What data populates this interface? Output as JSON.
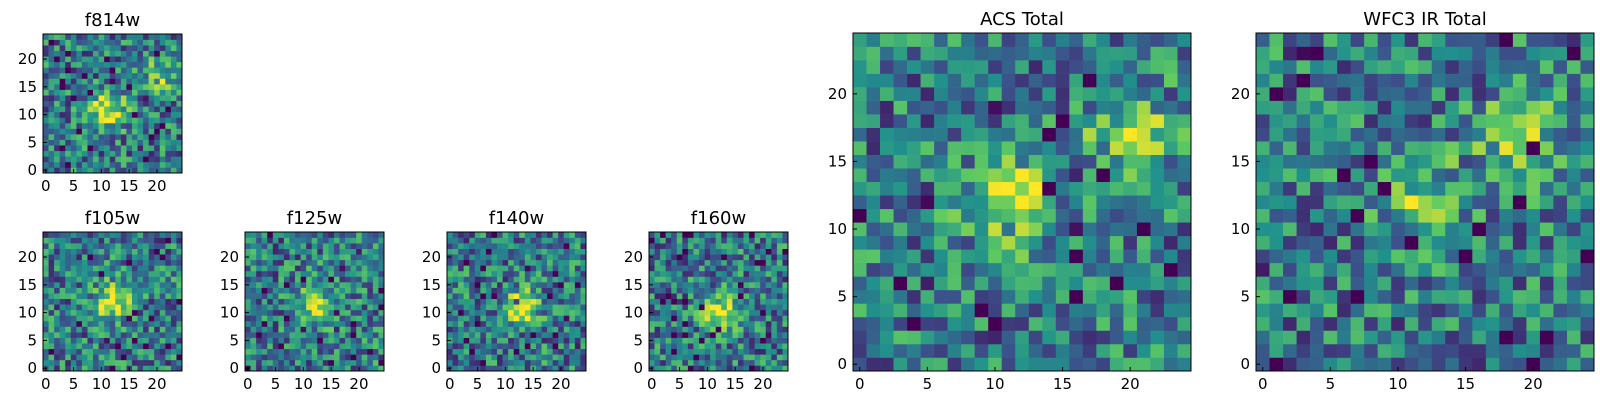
{
  "chart_data": [
    {
      "id": "f814w",
      "type": "heatmap",
      "title": "f814w",
      "grid_size": 25,
      "xlim": [
        0,
        24
      ],
      "ylim": [
        0,
        24
      ],
      "xticks": [
        "0",
        "5",
        "10",
        "15",
        "20"
      ],
      "yticks": [
        "0",
        "5",
        "10",
        "15",
        "20"
      ],
      "colormap": "viridis",
      "features": [
        {
          "x": 11,
          "y": 11,
          "strength": 1.0
        },
        {
          "x": 21,
          "y": 17,
          "strength": 0.6
        }
      ],
      "seed": 7
    },
    {
      "id": "f105w",
      "type": "heatmap",
      "title": "f105w",
      "grid_size": 25,
      "xlim": [
        0,
        24
      ],
      "ylim": [
        0,
        24
      ],
      "xticks": [
        "0",
        "5",
        "10",
        "15",
        "20"
      ],
      "yticks": [
        "0",
        "5",
        "10",
        "15",
        "20"
      ],
      "colormap": "viridis",
      "features": [
        {
          "x": 12,
          "y": 12,
          "strength": 1.0
        }
      ],
      "seed": 13
    },
    {
      "id": "f125w",
      "type": "heatmap",
      "title": "f125w",
      "grid_size": 25,
      "xlim": [
        0,
        24
      ],
      "ylim": [
        0,
        24
      ],
      "xticks": [
        "0",
        "5",
        "10",
        "15",
        "20"
      ],
      "yticks": [
        "0",
        "5",
        "10",
        "15",
        "20"
      ],
      "colormap": "viridis",
      "features": [
        {
          "x": 12,
          "y": 11,
          "strength": 0.9
        }
      ],
      "seed": 19
    },
    {
      "id": "f140w",
      "type": "heatmap",
      "title": "f140w",
      "grid_size": 25,
      "xlim": [
        0,
        24
      ],
      "ylim": [
        0,
        24
      ],
      "xticks": [
        "0",
        "5",
        "10",
        "15",
        "20"
      ],
      "yticks": [
        "0",
        "5",
        "10",
        "15",
        "20"
      ],
      "colormap": "viridis",
      "features": [
        {
          "x": 13,
          "y": 11,
          "strength": 0.9
        }
      ],
      "seed": 23
    },
    {
      "id": "f160w",
      "type": "heatmap",
      "title": "f160w",
      "grid_size": 25,
      "xlim": [
        0,
        24
      ],
      "ylim": [
        0,
        24
      ],
      "xticks": [
        "0",
        "5",
        "10",
        "15",
        "20"
      ],
      "yticks": [
        "0",
        "5",
        "10",
        "15",
        "20"
      ],
      "colormap": "viridis",
      "features": [
        {
          "x": 12,
          "y": 10,
          "strength": 1.0
        }
      ],
      "seed": 29
    },
    {
      "id": "acs_total",
      "type": "heatmap",
      "title": "ACS Total",
      "grid_size": 25,
      "xlim": [
        0,
        24
      ],
      "ylim": [
        0,
        24
      ],
      "xticks": [
        "0",
        "5",
        "10",
        "15",
        "20"
      ],
      "yticks": [
        "0",
        "5",
        "10",
        "15",
        "20"
      ],
      "colormap": "viridis",
      "features": [
        {
          "x": 11,
          "y": 12,
          "strength": 1.0
        },
        {
          "x": 20,
          "y": 17,
          "strength": 0.7
        }
      ],
      "seed": 31
    },
    {
      "id": "wfc3_ir_total",
      "type": "heatmap",
      "title": "WFC3 IR Total",
      "grid_size": 25,
      "xlim": [
        0,
        24
      ],
      "ylim": [
        0,
        24
      ],
      "xticks": [
        "0",
        "5",
        "10",
        "15",
        "20"
      ],
      "yticks": [
        "0",
        "5",
        "10",
        "15",
        "20"
      ],
      "colormap": "viridis",
      "features": [
        {
          "x": 12,
          "y": 12,
          "strength": 0.6
        },
        {
          "x": 19,
          "y": 17,
          "strength": 0.6
        }
      ],
      "seed": 37
    }
  ]
}
